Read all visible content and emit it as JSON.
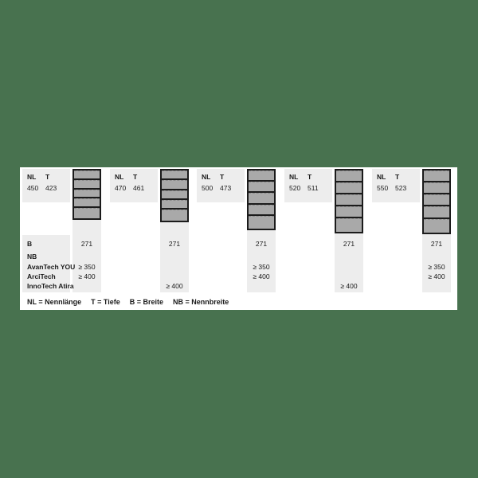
{
  "table": {
    "headers": {
      "nl": "NL",
      "t": "T"
    },
    "row_labels": {
      "b": "B",
      "nb": "NB",
      "avantech": "AvanTech YOU",
      "arcitech": "ArciTech",
      "innotech": "InnoTech Atira"
    },
    "columns": [
      {
        "nl": "450",
        "t": "423",
        "b": "271",
        "avantech": "≥ 350",
        "arcitech": "≥ 400",
        "innotech": ""
      },
      {
        "nl": "470",
        "t": "461",
        "b": "271",
        "avantech": "",
        "arcitech": "",
        "innotech": "≥ 400"
      },
      {
        "nl": "500",
        "t": "473",
        "b": "271",
        "avantech": "≥ 350",
        "arcitech": "≥ 400",
        "innotech": ""
      },
      {
        "nl": "520",
        "t": "511",
        "b": "271",
        "avantech": "",
        "arcitech": "",
        "innotech": "≥ 400"
      },
      {
        "nl": "550",
        "t": "523",
        "b": "271",
        "avantech": "≥ 350",
        "arcitech": "≥ 400",
        "innotech": ""
      }
    ],
    "legend": {
      "items": [
        "NL = Nennlänge",
        "T = Tiefe",
        "B = Breite",
        "NB = Nennbreite"
      ]
    }
  },
  "colors": {
    "background_green": "#48724f",
    "panel_white": "#ffffff",
    "block_gray": "#ededed",
    "runner_gray": "#a9a9a9",
    "line_dark": "#1b1b1b"
  }
}
